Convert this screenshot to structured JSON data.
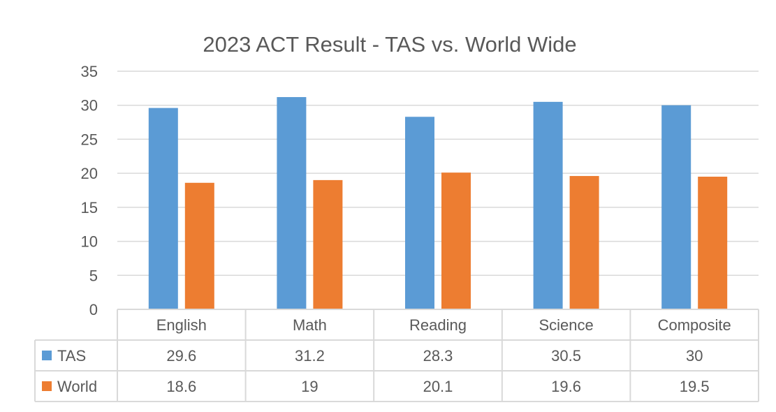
{
  "chart_data": {
    "type": "bar",
    "title": "2023 ACT Result - TAS vs. World Wide",
    "xlabel": "",
    "ylabel": "",
    "categories": [
      "English",
      "Math",
      "Reading",
      "Science",
      "Composite"
    ],
    "series": [
      {
        "name": "TAS",
        "color": "#5B9BD5",
        "values": [
          29.6,
          31.2,
          28.3,
          30.5,
          30
        ],
        "labels": [
          "29.6",
          "31.2",
          "28.3",
          "30.5",
          "30"
        ]
      },
      {
        "name": "World",
        "color": "#ED7D31",
        "values": [
          18.6,
          19,
          20.1,
          19.6,
          19.5
        ],
        "labels": [
          "18.6",
          "19",
          "20.1",
          "19.6",
          "19.5"
        ]
      }
    ],
    "ylim": [
      0,
      35
    ],
    "yticks": [
      "0",
      "5",
      "10",
      "15",
      "20",
      "25",
      "30",
      "35"
    ],
    "grid": true,
    "legend": "data-table",
    "data_table": true,
    "colors": {
      "gridline": "#D9D9D9",
      "text": "#595959",
      "table_border": "#D9D9D9"
    }
  }
}
